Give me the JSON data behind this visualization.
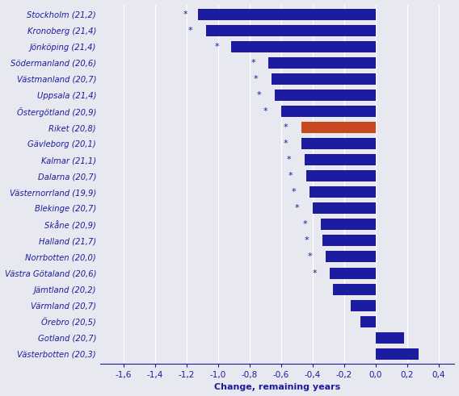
{
  "categories": [
    "Stockholm (21,2)",
    "Kronoberg (21,4)",
    "Jönköping (21,4)",
    "Södermanland (20,6)",
    "Västmanland (20,7)",
    "Uppsala (21,4)",
    "Östergötland (20,9)",
    "Riket (20,8)",
    "Gävleborg (20,1)",
    "Kalmar (21,1)",
    "Dalarna (20,7)",
    "Västernorrland (19,9)",
    "Blekinge (20,7)",
    "Skåne (20,9)",
    "Halland (21,7)",
    "Norrbotten (20,0)",
    "Västra Götaland (20,6)",
    "Jämtland (20,2)",
    "Värmland (20,7)",
    "Örebro (20,5)",
    "Gotland (20,7)",
    "Västerbotten (20,3)"
  ],
  "values": [
    -1.13,
    -1.08,
    -0.92,
    -0.68,
    -0.66,
    -0.64,
    -0.6,
    -0.47,
    -0.47,
    -0.45,
    -0.44,
    -0.42,
    -0.4,
    -0.35,
    -0.34,
    -0.32,
    -0.29,
    -0.27,
    -0.16,
    -0.1,
    0.18,
    0.27
  ],
  "has_star": [
    true,
    true,
    true,
    true,
    true,
    true,
    true,
    true,
    true,
    true,
    true,
    true,
    true,
    true,
    true,
    true,
    true,
    false,
    false,
    false,
    false,
    false
  ],
  "star_x_offsets": [
    -1.21,
    -1.18,
    -1.01,
    -0.78,
    -0.76,
    -0.74,
    -0.7,
    -0.57,
    -0.57,
    -0.55,
    -0.54,
    -0.52,
    -0.5,
    -0.45,
    -0.44,
    -0.42,
    -0.39,
    null,
    null,
    null,
    null,
    null
  ],
  "bar_colors": [
    "#1c1ca0",
    "#1c1ca0",
    "#1c1ca0",
    "#1c1ca0",
    "#1c1ca0",
    "#1c1ca0",
    "#1c1ca0",
    "#c84820",
    "#1c1ca0",
    "#1c1ca0",
    "#1c1ca0",
    "#1c1ca0",
    "#1c1ca0",
    "#1c1ca0",
    "#1c1ca0",
    "#1c1ca0",
    "#1c1ca0",
    "#1c1ca0",
    "#1c1ca0",
    "#1c1ca0",
    "#1c1ca0",
    "#1c1ca0"
  ],
  "xlabel": "Change, remaining years",
  "xlim": [
    -1.75,
    0.5
  ],
  "xticks": [
    -1.6,
    -1.4,
    -1.2,
    -1.0,
    -0.8,
    -0.6,
    -0.4,
    -0.2,
    0.0,
    0.2,
    0.4
  ],
  "xtick_labels": [
    "-1,6",
    "-1,4",
    "-1,2",
    "-1,0",
    "-0,8",
    "-0,6",
    "-0,4",
    "-0,2",
    "0,0",
    "0,2",
    "0,4"
  ],
  "label_color": "#1c1ca0",
  "star_color": "#1c1ca0",
  "bg_color": "#e8e8f0",
  "grid_color": "#ffffff",
  "bar_height": 0.7,
  "figsize": [
    5.68,
    4.91
  ],
  "dpi": 100
}
